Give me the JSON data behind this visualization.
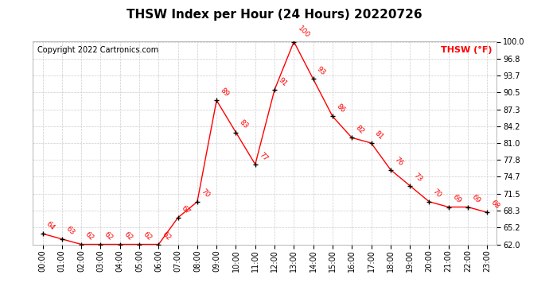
{
  "title": "THSW Index per Hour (24 Hours) 20220726",
  "copyright": "Copyright 2022 Cartronics.com",
  "legend_label": "THSW (°F)",
  "hours": [
    0,
    1,
    2,
    3,
    4,
    5,
    6,
    7,
    8,
    9,
    10,
    11,
    12,
    13,
    14,
    15,
    16,
    17,
    18,
    19,
    20,
    21,
    22,
    23
  ],
  "hour_labels": [
    "00:00",
    "01:00",
    "02:00",
    "03:00",
    "04:00",
    "05:00",
    "06:00",
    "07:00",
    "08:00",
    "09:00",
    "10:00",
    "11:00",
    "12:00",
    "13:00",
    "14:00",
    "15:00",
    "16:00",
    "17:00",
    "18:00",
    "19:00",
    "20:00",
    "21:00",
    "22:00",
    "23:00"
  ],
  "values": [
    64,
    63,
    62,
    62,
    62,
    62,
    62,
    67,
    70,
    89,
    83,
    77,
    91,
    100,
    93,
    86,
    82,
    81,
    76,
    73,
    70,
    69,
    69,
    68
  ],
  "yticks": [
    62.0,
    65.2,
    68.3,
    71.5,
    74.7,
    77.8,
    81.0,
    84.2,
    87.3,
    90.5,
    93.7,
    96.8,
    100.0
  ],
  "ylim": [
    62.0,
    100.0
  ],
  "line_color": "red",
  "marker_color": "black",
  "title_fontsize": 11,
  "label_fontsize": 8,
  "tick_fontsize": 7,
  "annotation_fontsize": 6.5,
  "copyright_fontsize": 7,
  "background_color": "#ffffff",
  "grid_color": "#cccccc"
}
